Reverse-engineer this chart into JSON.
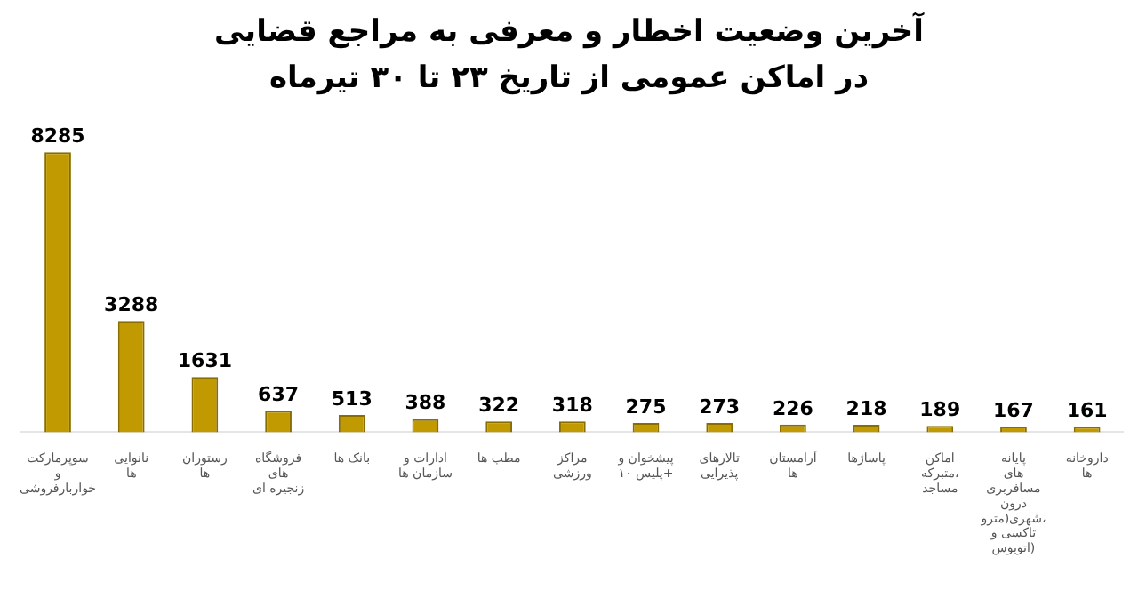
{
  "chart_data": {
    "type": "bar",
    "title": "آخرین وضعیت اخطار و معرفی به مراجع قضایی",
    "subtitle": "در اماکن عمومی از تاریخ ۲۳ تا ۳۰ تیرماه",
    "categories": [
      "سوپرمارکت و خواربارفروشی",
      "نانوایی ها",
      "رستوران ها",
      "فروشگاه های زنجیره ای",
      "بانک ها",
      "ادارات و سازمان ها",
      "مطب ها",
      "مراکز ورزشی",
      "پیشخوان و پلیس ۱۰+",
      "تالارهای پذیرایی",
      "آرامستان ها",
      "پاساژها",
      "اماکن متبرکه، مساجد",
      "پایانه های مسافربری درون شهری(مترو، تاکسی و اتوبوس)",
      "داروخانه ها"
    ],
    "values": [
      8285,
      3288,
      1631,
      637,
      513,
      388,
      322,
      318,
      275,
      273,
      226,
      218,
      189,
      167,
      161
    ],
    "color": "#c09a00",
    "data_labels": true
  }
}
